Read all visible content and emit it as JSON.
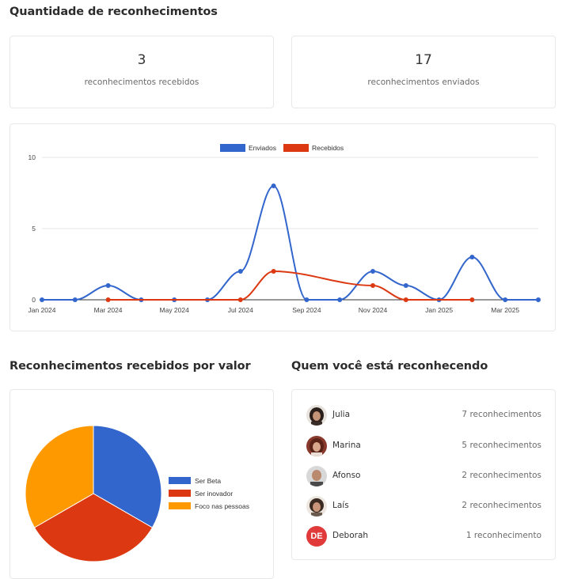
{
  "headings": {
    "count_title": "Quantidade de reconhecimentos",
    "by_value_title": "Reconhecimentos recebidos por valor",
    "recognizing_title": "Quem você está reconhecendo"
  },
  "stats": {
    "received": {
      "value": "3",
      "label": "reconhecimentos recebidos"
    },
    "sent": {
      "value": "17",
      "label": "reconhecimentos enviados"
    }
  },
  "colors": {
    "blue": "#3366cc",
    "red": "#dc3912",
    "orange": "#ff9900",
    "grid": "#e6e6e6",
    "card_border": "#e8e8e8"
  },
  "chart_data": [
    {
      "type": "line",
      "title": "",
      "xlabel": "",
      "ylabel": "",
      "x": [
        "Jan 2024",
        "Feb 2024",
        "Mar 2024",
        "Apr 2024",
        "May 2024",
        "Jun 2024",
        "Jul 2024",
        "Aug 2024",
        "Sep 2024",
        "Oct 2024",
        "Nov 2024",
        "Dec 2024",
        "Jan 2025",
        "Feb 2025",
        "Mar 2025",
        "Apr 2025"
      ],
      "x_tick_labels": [
        "Jan 2024",
        "Mar 2024",
        "May 2024",
        "Jul 2024",
        "Sep 2024",
        "Nov 2024",
        "Jan 2025",
        "Mar 2025"
      ],
      "y_ticks": [
        "0",
        "5",
        "10"
      ],
      "ylim": [
        0,
        10
      ],
      "grid": true,
      "legend_position": "top",
      "smooth": true,
      "series": [
        {
          "name": "Enviados",
          "color": "#3366cc",
          "values": [
            0,
            0,
            1,
            0,
            0,
            0,
            2,
            8,
            0,
            0,
            2,
            1,
            0,
            3,
            0,
            0
          ]
        },
        {
          "name": "Recebidos",
          "color": "#dc3912",
          "values": [
            null,
            null,
            0,
            null,
            null,
            null,
            0,
            2,
            null,
            null,
            1,
            0,
            null,
            0,
            null,
            null
          ]
        }
      ]
    },
    {
      "type": "pie",
      "title": "",
      "categories": [
        "Ser Beta",
        "Ser inovador",
        "Foco nas pessoas"
      ],
      "values": [
        1,
        1,
        1
      ],
      "colors": [
        "#3366cc",
        "#dc3912",
        "#ff9900"
      ],
      "legend_position": "right"
    }
  ],
  "people": [
    {
      "name": "Julia",
      "count": "7 reconhecimentos",
      "avatar": "photo"
    },
    {
      "name": "Marina",
      "count": "5 reconhecimentos",
      "avatar": "photo"
    },
    {
      "name": "Afonso",
      "count": "2 reconhecimentos",
      "avatar": "photo"
    },
    {
      "name": "Laís",
      "count": "2 reconhecimentos",
      "avatar": "photo"
    },
    {
      "name": "Deborah",
      "count": "1 reconhecimento",
      "avatar": "initials",
      "initials": "DE"
    }
  ]
}
